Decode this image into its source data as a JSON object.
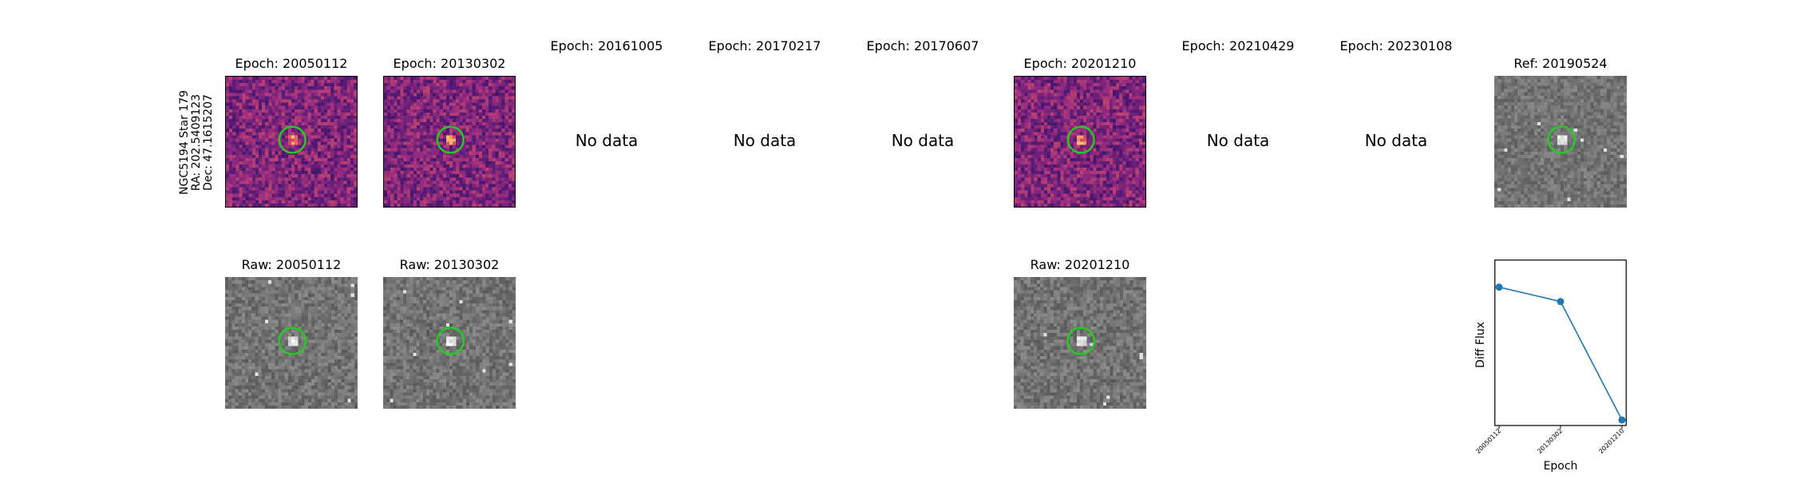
{
  "star": {
    "name": "NGC5194 Star 179",
    "ra": "RA: 202.5409123",
    "dec": "Dec: 47.1615207"
  },
  "epoch_panels": [
    {
      "title": "Epoch: 20050112",
      "has_data": true
    },
    {
      "title": "Epoch: 20130302",
      "has_data": true
    },
    {
      "title": "Epoch: 20161005",
      "has_data": false
    },
    {
      "title": "Epoch: 20170217",
      "has_data": false
    },
    {
      "title": "Epoch: 20170607",
      "has_data": false
    },
    {
      "title": "Epoch: 20201210",
      "has_data": true
    },
    {
      "title": "Epoch: 20210429",
      "has_data": false
    },
    {
      "title": "Epoch: 20230108",
      "has_data": false
    }
  ],
  "no_data_label": "No data",
  "reference": {
    "title": "Ref: 20190524"
  },
  "raw_panels": [
    {
      "title": "Raw: 20050112"
    },
    {
      "title": "Raw: 20130302"
    },
    {
      "title": "Raw: 20201210"
    }
  ],
  "colors": {
    "circle": "#22cc22",
    "series": "#1f77b4"
  },
  "chart_data": {
    "type": "line",
    "title": "",
    "xlabel": "Epoch",
    "ylabel": "Diff Flux",
    "categories": [
      "20050112",
      "20130302",
      "20201210"
    ],
    "series": [
      {
        "values": [
          0.85,
          0.72,
          -0.35
        ]
      }
    ],
    "ylim": [
      -0.4,
      1.1
    ],
    "grid": false
  }
}
